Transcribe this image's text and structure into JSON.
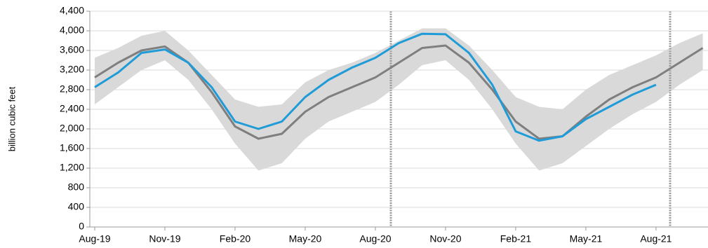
{
  "chart_data": {
    "type": "line",
    "y_label": "billion cubic feet",
    "categories": [
      "Aug-19",
      null,
      null,
      "Nov-19",
      null,
      null,
      "Feb-20",
      null,
      null,
      "May-20",
      null,
      null,
      "Aug-20",
      null,
      null,
      "Nov-20",
      null,
      null,
      "Feb-21",
      null,
      null,
      "May-21",
      null,
      null,
      "Aug-21",
      null,
      null
    ],
    "range": {
      "color": "#d9d9d9",
      "low": [
        2500,
        2850,
        3200,
        3400,
        3000,
        2400,
        1700,
        1150,
        1300,
        1800,
        2150,
        2350,
        2550,
        2900,
        3300,
        3400,
        3000,
        2400,
        1700,
        1150,
        1300,
        1650,
        2000,
        2300,
        2550,
        2900,
        3200
      ],
      "high": [
        3450,
        3650,
        3900,
        4000,
        3600,
        3100,
        2600,
        2450,
        2500,
        2950,
        3200,
        3350,
        3550,
        3800,
        4050,
        4050,
        3700,
        3200,
        2650,
        2450,
        2400,
        2800,
        3100,
        3300,
        3500,
        3750,
        3950
      ]
    },
    "series": [
      {
        "color": "#7f7f7f",
        "values": [
          3050,
          3350,
          3600,
          3680,
          3350,
          2750,
          2050,
          1800,
          1900,
          2350,
          2650,
          2850,
          3050,
          3350,
          3650,
          3700,
          3350,
          2800,
          2150,
          1800,
          1850,
          2250,
          2600,
          2850,
          3050,
          3350,
          3650
        ]
      },
      {
        "color": "#1f9bd7",
        "values": [
          2850,
          3150,
          3550,
          3620,
          3350,
          2850,
          2150,
          2000,
          2150,
          2650,
          3000,
          3250,
          3450,
          3750,
          3940,
          3930,
          3550,
          2900,
          1950,
          1760,
          1850,
          2200,
          2450,
          2700,
          2900,
          null,
          null
        ]
      }
    ],
    "ylim": [
      0,
      4400
    ],
    "yticks": [
      0,
      400,
      800,
      {
        "value": 1200,
        "label": "1,200"
      },
      {
        "value": 1600,
        "label": "1,600"
      },
      {
        "value": 2000,
        "label": "2,000"
      },
      {
        "value": 2400,
        "label": "2,400"
      },
      {
        "value": 2800,
        "label": "2,800"
      },
      {
        "value": 3200,
        "label": "3,200"
      },
      {
        "value": 3600,
        "label": "3,600"
      },
      {
        "value": 4000,
        "label": "4,000"
      },
      {
        "value": 4400,
        "label": "4,400"
      }
    ],
    "grid": true
  }
}
